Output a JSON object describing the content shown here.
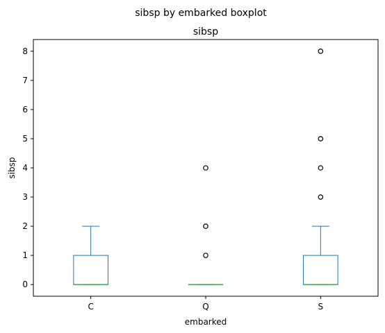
{
  "chart_data": {
    "type": "boxplot",
    "suptitle": "sibsp by embarked boxplot",
    "title": "sibsp",
    "xlabel": "embarked",
    "ylabel": "sibsp",
    "categories": [
      "C",
      "Q",
      "S"
    ],
    "ylim": [
      -0.4,
      8.4
    ],
    "yticks": [
      0,
      1,
      2,
      3,
      4,
      5,
      6,
      7,
      8
    ],
    "grid": false,
    "boxes": [
      {
        "category": "C",
        "q1": 0,
        "median": 0,
        "q3": 1,
        "whisker_low": 0,
        "whisker_high": 2,
        "outliers": []
      },
      {
        "category": "Q",
        "q1": 0,
        "median": 0,
        "q3": 0,
        "whisker_low": 0,
        "whisker_high": 0,
        "outliers": [
          1,
          2,
          4
        ]
      },
      {
        "category": "S",
        "q1": 0,
        "median": 0,
        "q3": 1,
        "whisker_low": 0,
        "whisker_high": 2,
        "outliers": [
          3,
          4,
          5,
          8
        ]
      }
    ],
    "colors": {
      "box": "#1f77b4",
      "median": "#2ca02c",
      "flier": "#000000"
    }
  }
}
